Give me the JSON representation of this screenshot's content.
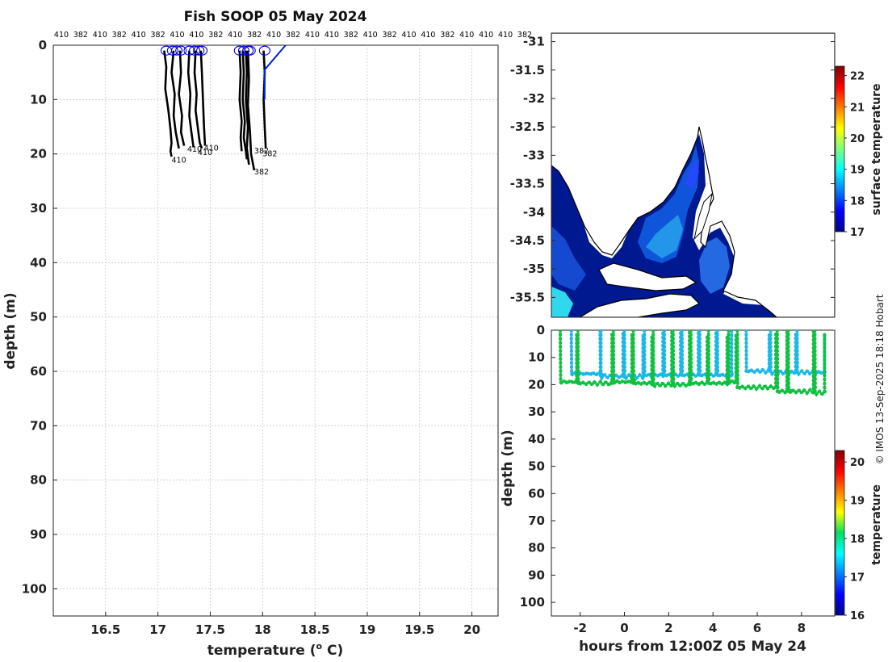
{
  "colors": {
    "profile_line": "#000000",
    "surface_marker": "#0000dd",
    "ship_track": "#0022ee",
    "land": "#ffffff",
    "coastline": "#000000",
    "ocean_sst": "#001890",
    "series_shallow": "#18b8e8",
    "series_deep": "#10c040"
  },
  "page": {
    "title": "Fish SOOP 05 May 2024",
    "credit": "© IMOS 13-Sep-2025 18:18 Hobart"
  },
  "chart_data": [
    {
      "id": "profiles",
      "type": "line",
      "xlabel": "temperature (",
      "xlabel_sup": "o",
      "xlabel_end": " C)",
      "ylabel": "depth (m)",
      "xlim": [
        16,
        20.25
      ],
      "ylim": [
        0,
        105
      ],
      "y_reversed": true,
      "grid": true,
      "xticks": [
        16.5,
        17,
        17.5,
        18,
        18.5,
        19,
        19.5,
        20
      ],
      "xtick_labels": [
        "16.5",
        "17",
        "17.5",
        "18",
        "18.5",
        "19",
        "19.5",
        "20"
      ],
      "yticks": [
        0,
        10,
        20,
        30,
        40,
        50,
        60,
        70,
        80,
        90,
        100
      ],
      "ytick_labels": [
        "0",
        "10",
        "20",
        "30",
        "40",
        "50",
        "60",
        "70",
        "80",
        "90",
        "100"
      ],
      "top_labels": [
        "410",
        "382",
        "410",
        "382",
        "410",
        "382",
        "410",
        "410",
        "382",
        "410",
        "382",
        "410",
        "382",
        "410",
        "410",
        "382",
        "410",
        "382",
        "410",
        "410",
        "382",
        "410",
        "410",
        "410",
        "382"
      ],
      "series": [
        {
          "temps": [
            17.06,
            17.08,
            17.07,
            17.1,
            17.12,
            17.13,
            17.12,
            17.13
          ],
          "depths": [
            1,
            4,
            8,
            12,
            15.5,
            18,
            19.5,
            20.5
          ]
        },
        {
          "temps": [
            17.15,
            17.13,
            17.16,
            17.15,
            17.17,
            17.19,
            17.2
          ],
          "depths": [
            1,
            5,
            9,
            13,
            16,
            18,
            19
          ]
        },
        {
          "temps": [
            17.21,
            17.22,
            17.2,
            17.23,
            17.22,
            17.25
          ],
          "depths": [
            1,
            5,
            9,
            13,
            16,
            18.5
          ]
        },
        {
          "temps": [
            17.3,
            17.29,
            17.31,
            17.3,
            17.32,
            17.34
          ],
          "depths": [
            1,
            5,
            9,
            13,
            16,
            18.8
          ]
        },
        {
          "temps": [
            17.36,
            17.35,
            17.37,
            17.36,
            17.38,
            17.4,
            17.42
          ],
          "depths": [
            1,
            5,
            9,
            12,
            15,
            18,
            19
          ]
        },
        {
          "temps": [
            17.41,
            17.42,
            17.43,
            17.44,
            17.45
          ],
          "depths": [
            1,
            5,
            10,
            15,
            18.5
          ]
        },
        {
          "temps": [
            17.78,
            17.79,
            17.78,
            17.8,
            17.79,
            17.8
          ],
          "depths": [
            1,
            5,
            10,
            14,
            17,
            19.5
          ]
        },
        {
          "temps": [
            17.81,
            17.82,
            17.81,
            17.83,
            17.82,
            17.84,
            17.85
          ],
          "depths": [
            1,
            5,
            10,
            14,
            17,
            19.5,
            21
          ]
        },
        {
          "temps": [
            17.84,
            17.85,
            17.84,
            17.86,
            17.85,
            17.87
          ],
          "depths": [
            1,
            5,
            10,
            15,
            19,
            22
          ]
        },
        {
          "temps": [
            17.86,
            17.87,
            17.86,
            17.88,
            17.89,
            17.92
          ],
          "depths": [
            1,
            6,
            11,
            16,
            20,
            23
          ]
        },
        {
          "temps": [
            18.01,
            18.02,
            18.01,
            18.02,
            18.03
          ],
          "depths": [
            1,
            5,
            10,
            15,
            19
          ]
        }
      ],
      "ship_track": {
        "temps": [
          18.22,
          18.02,
          18.02
        ],
        "depths": [
          0,
          4.5,
          10
        ]
      },
      "surface_markers": {
        "temps": [
          17.08,
          17.14,
          17.18,
          17.22,
          17.3,
          17.35,
          17.39,
          17.42,
          17.78,
          17.82,
          17.86,
          17.88,
          18.02
        ],
        "depths": [
          1,
          1,
          1,
          1,
          1,
          1,
          1,
          1,
          1,
          1,
          1,
          1,
          1
        ]
      },
      "bottom_labels": [
        {
          "text": "410",
          "temp": 17.13,
          "depth": 21
        },
        {
          "text": "410",
          "temp": 17.28,
          "depth": 19
        },
        {
          "text": "410",
          "temp": 17.38,
          "depth": 19.6
        },
        {
          "text": "410",
          "temp": 17.44,
          "depth": 18.8
        },
        {
          "text": "382",
          "temp": 17.92,
          "depth": 19.3
        },
        {
          "text": "382",
          "temp": 18.0,
          "depth": 19.8
        },
        {
          "text": "382",
          "temp": 17.92,
          "depth": 23.2
        }
      ]
    },
    {
      "id": "sst_map",
      "type": "heatmap",
      "xlim": [
        134.6,
        141.4
      ],
      "ylim": [
        -35.85,
        -30.85
      ],
      "yticks": [
        -31,
        -31.5,
        -32,
        -32.5,
        -33,
        -33.5,
        -34,
        -34.5,
        -35,
        -35.5
      ],
      "ytick_labels": [
        "-31",
        "-31.5",
        "-32",
        "-32.5",
        "-33",
        "-33.5",
        "-34",
        "-34.5",
        "-35",
        "-35.5"
      ],
      "colorbar": {
        "label": "surface temperature",
        "range": [
          17,
          22.3
        ],
        "ticks": [
          17,
          18,
          19,
          20,
          21,
          22
        ],
        "tick_labels": [
          "17",
          "18",
          "19",
          "20",
          "21",
          "22"
        ]
      }
    },
    {
      "id": "depth_time",
      "type": "scatter",
      "xlabel": "hours from 12:00Z 05 May 24",
      "ylabel": "depth (m)",
      "xlim": [
        -3.3,
        9.5
      ],
      "ylim": [
        0,
        105
      ],
      "y_reversed": true,
      "xticks": [
        -2,
        0,
        2,
        4,
        6,
        8
      ],
      "xtick_labels": [
        "-2",
        "0",
        "2",
        "4",
        "6",
        "8"
      ],
      "yticks": [
        0,
        10,
        20,
        30,
        40,
        50,
        60,
        70,
        80,
        90,
        100
      ],
      "ytick_labels": [
        "0",
        "10",
        "20",
        "30",
        "40",
        "50",
        "60",
        "70",
        "80",
        "90",
        "100"
      ],
      "shallow_series": {
        "color_value": 16.9,
        "casts": [
          {
            "t": -2.4,
            "bottom": 16,
            "next": -1.0
          },
          {
            "t": -1.1,
            "bottom": 17,
            "next": 0.0
          },
          {
            "t": 0.0,
            "bottom": 17,
            "next": 0.9
          },
          {
            "t": 0.9,
            "bottom": 16.5,
            "next": 1.8
          },
          {
            "t": 1.8,
            "bottom": 16.5,
            "next": 2.6
          },
          {
            "t": 2.6,
            "bottom": 16.5,
            "next": 3.4
          },
          {
            "t": 3.4,
            "bottom": 16.5,
            "next": 4.2
          },
          {
            "t": 4.2,
            "bottom": 16.5,
            "next": 4.9
          },
          {
            "t": 5.5,
            "bottom": 15,
            "next": 6.6
          },
          {
            "t": 6.6,
            "bottom": 15.5,
            "next": 7.8
          },
          {
            "t": 7.8,
            "bottom": 15.5,
            "next": 9.1
          }
        ]
      },
      "deep_series": {
        "color_value": 18.0,
        "casts": [
          {
            "t": -2.9,
            "bottom": 19,
            "next": -2.1
          },
          {
            "t": -2.1,
            "bottom": 19.5,
            "next": -0.5
          },
          {
            "t": -0.5,
            "bottom": 19,
            "next": 0.4
          },
          {
            "t": 0.4,
            "bottom": 19.5,
            "next": 1.3
          },
          {
            "t": 1.3,
            "bottom": 20,
            "next": 2.2
          },
          {
            "t": 2.2,
            "bottom": 20,
            "next": 3.0
          },
          {
            "t": 3.0,
            "bottom": 19.5,
            "next": 3.8
          },
          {
            "t": 3.8,
            "bottom": 19.5,
            "next": 4.7
          },
          {
            "t": 4.7,
            "bottom": 19,
            "next": 5.1
          },
          {
            "t": 5.1,
            "bottom": 21,
            "next": 6.9
          },
          {
            "t": 6.9,
            "bottom": 22.5,
            "next": 7.4
          },
          {
            "t": 7.4,
            "bottom": 22.5,
            "next": 8.6
          },
          {
            "t": 8.6,
            "bottom": 23,
            "next": 9.1
          }
        ]
      },
      "colorbar": {
        "label": "temperature",
        "range": [
          16,
          20.3
        ],
        "ticks": [
          16,
          17,
          18,
          19,
          20
        ],
        "tick_labels": [
          "16",
          "17",
          "18",
          "19",
          "20"
        ]
      }
    }
  ]
}
